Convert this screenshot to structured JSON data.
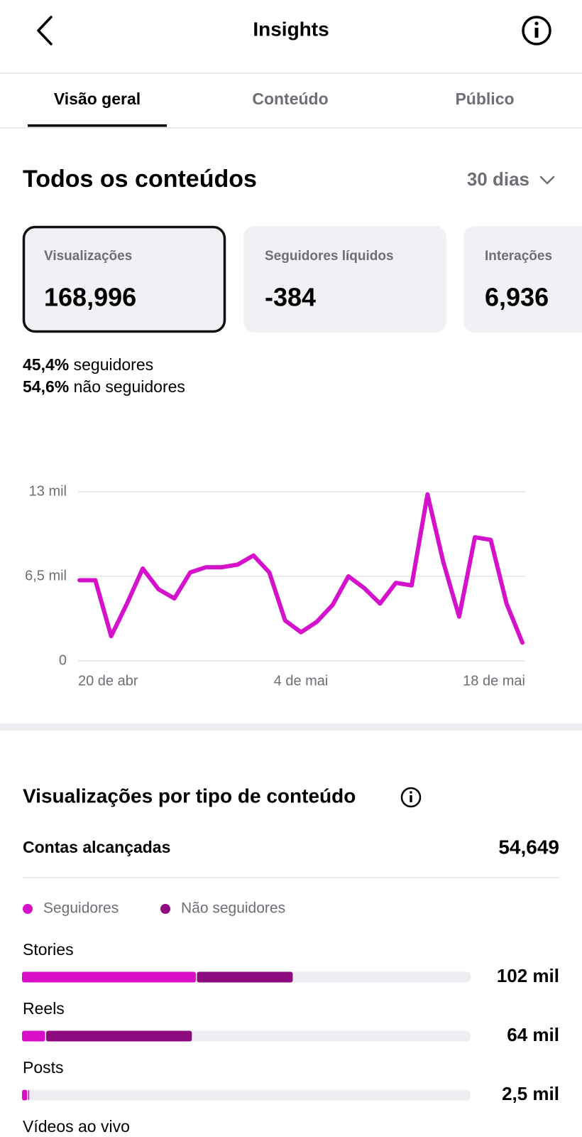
{
  "header": {
    "title": "Insights"
  },
  "tabs": [
    "Visão geral",
    "Conteúdo",
    "Público"
  ],
  "section": {
    "title": "Todos os conteúdos",
    "period": "30 dias"
  },
  "cards": [
    {
      "label": "Visualizações",
      "value": "168,996"
    },
    {
      "label": "Seguidores líquidos",
      "value": "-384"
    },
    {
      "label": "Interações",
      "value": "6,936"
    }
  ],
  "split": [
    {
      "value": "45,4%",
      "label": "seguidores"
    },
    {
      "value": "54,6%",
      "label": "não seguidores"
    }
  ],
  "reach": {
    "label": "Contas alcançadas",
    "value": "54,649"
  },
  "chart_data": [
    {
      "type": "line",
      "color": "#d412cc",
      "categories": [
        "20 de abr",
        null,
        null,
        null,
        null,
        null,
        null,
        null,
        null,
        null,
        null,
        null,
        null,
        null,
        "4 de mai",
        null,
        null,
        null,
        null,
        null,
        null,
        null,
        null,
        null,
        null,
        null,
        null,
        null,
        "18 de mai"
      ],
      "values": [
        6.2,
        6.2,
        1.9,
        4.4,
        7.1,
        5.5,
        4.8,
        6.8,
        7.2,
        7.2,
        7.4,
        8.1,
        6.8,
        3.1,
        2.2,
        3.0,
        4.3,
        6.5,
        5.6,
        4.4,
        6.0,
        5.8,
        12.8,
        7.6,
        3.4,
        9.5,
        9.3,
        4.4,
        1.4
      ],
      "ylim": [
        0,
        13
      ],
      "yticks": [
        0,
        {
          "value": 6.5,
          "label": "6,5 mil"
        },
        {
          "value": 13,
          "label": "13 mil"
        }
      ],
      "grid": true
    },
    {
      "type": "bar",
      "orientation": "horizontal",
      "stacked": true,
      "title": "Visualizações por tipo de conteúdo",
      "categories": [
        "Stories",
        "Reels",
        "Posts",
        "Vídeos ao vivo"
      ],
      "series": [
        {
          "name": "Seguidores",
          "color": "#d90fc8",
          "values": [
            65.5,
            8.7,
            2.0,
            null
          ]
        },
        {
          "name": "Não seguidores",
          "color": "#8e0a7f",
          "values": [
            36.5,
            55.3,
            0.5,
            null
          ]
        }
      ],
      "totals": [
        102,
        64,
        2.5,
        null
      ],
      "total_labels": [
        "102 mil",
        "64 mil",
        "2,5 mil",
        null
      ],
      "xlim": [
        0,
        169
      ]
    }
  ]
}
